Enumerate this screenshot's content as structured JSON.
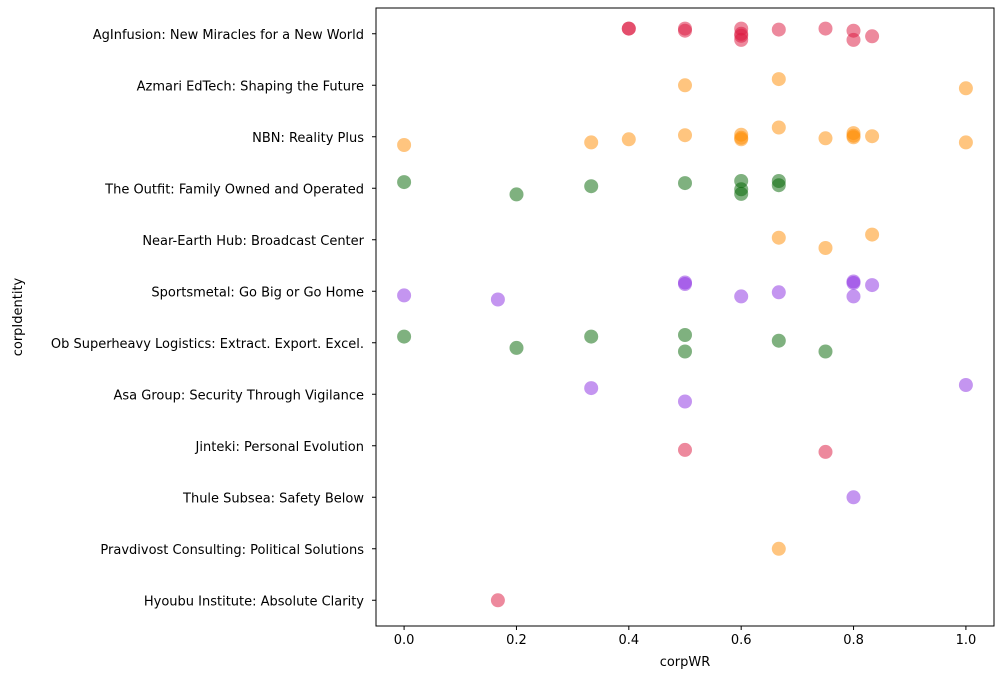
{
  "chart_data": {
    "type": "scatter",
    "title": "",
    "xlabel": "corpWR",
    "ylabel": "corpIdentity",
    "xlim": [
      -0.05,
      1.05
    ],
    "x_ticks": [
      0.0,
      0.2,
      0.4,
      0.6,
      0.8,
      1.0
    ],
    "x_tick_labels": [
      "0.0",
      "0.2",
      "0.4",
      "0.6",
      "0.8",
      "1.0"
    ],
    "grid": false,
    "categories": [
      "AgInfusion: New Miracles for a New World",
      "Azmari EdTech: Shaping the Future",
      "NBN: Reality Plus",
      "The Outfit: Family Owned and Operated",
      "Near-Earth Hub: Broadcast Center",
      "Sportsmetal: Go Big or Go Home",
      "Ob Superheavy Logistics: Extract. Export. Excel.",
      "Asa Group: Security Through Vigilance",
      "Jinteki: Personal Evolution",
      "Thule Subsea: Safety Below",
      "Pravdivost Consulting: Political Solutions",
      "Hyoubu Institute: Absolute Clarity"
    ],
    "category_colors": {
      "AgInfusion: New Miracles for a New World": "#dc143c",
      "Azmari EdTech: Shaping the Future": "#ff8c00",
      "NBN: Reality Plus": "#ff8c00",
      "The Outfit: Family Owned and Operated": "#006400",
      "Near-Earth Hub: Broadcast Center": "#ff8c00",
      "Sportsmetal: Go Big or Go Home": "#8a2be2",
      "Ob Superheavy Logistics: Extract. Export. Excel.": "#006400",
      "Asa Group: Security Through Vigilance": "#8a2be2",
      "Jinteki: Personal Evolution": "#dc143c",
      "Thule Subsea: Safety Below": "#8a2be2",
      "Pravdivost Consulting: Political Solutions": "#ff8c00",
      "Hyoubu Institute: Absolute Clarity": "#dc143c"
    },
    "points": [
      {
        "category": "AgInfusion: New Miracles for a New World",
        "x": [
          0.4,
          0.4,
          0.5,
          0.5,
          0.6,
          0.6,
          0.6,
          0.6,
          0.667,
          0.75,
          0.8,
          0.8,
          0.833
        ],
        "jitter": [
          0.1,
          0.1,
          0.1,
          0.06,
          0.1,
          0.0,
          -0.04,
          -0.12,
          0.08,
          0.1,
          0.06,
          -0.12,
          -0.05
        ]
      },
      {
        "category": "Azmari EdTech: Shaping the Future",
        "x": [
          0.5,
          0.667,
          1.0
        ],
        "jitter": [
          0.0,
          0.12,
          -0.06
        ]
      },
      {
        "category": "NBN: Reality Plus",
        "x": [
          0.0,
          0.333,
          0.4,
          0.5,
          0.6,
          0.6,
          0.6,
          0.667,
          0.75,
          0.8,
          0.8,
          0.8,
          0.833,
          1.0
        ],
        "jitter": [
          -0.16,
          -0.11,
          -0.05,
          0.03,
          0.04,
          -0.02,
          -0.05,
          0.18,
          -0.03,
          0.07,
          0.02,
          -0.01,
          0.01,
          -0.11
        ]
      },
      {
        "category": "The Outfit: Family Owned and Operated",
        "x": [
          0.0,
          0.2,
          0.333,
          0.5,
          0.6,
          0.6,
          0.6,
          0.667,
          0.667
        ],
        "jitter": [
          0.12,
          -0.12,
          0.04,
          0.1,
          0.14,
          -0.02,
          -0.11,
          0.14,
          0.06
        ]
      },
      {
        "category": "Near-Earth Hub: Broadcast Center",
        "x": [
          0.667,
          0.75,
          0.833
        ],
        "jitter": [
          0.04,
          -0.16,
          0.1
        ]
      },
      {
        "category": "Sportsmetal: Go Big or Go Home",
        "x": [
          0.0,
          0.167,
          0.5,
          0.5,
          0.6,
          0.667,
          0.8,
          0.8,
          0.8,
          0.833
        ],
        "jitter": [
          -0.08,
          -0.16,
          0.17,
          0.14,
          -0.1,
          -0.02,
          0.19,
          0.16,
          -0.1,
          0.12
        ]
      },
      {
        "category": "Ob Superheavy Logistics: Extract. Export. Excel.",
        "x": [
          0.0,
          0.2,
          0.333,
          0.5,
          0.5,
          0.667,
          0.75
        ],
        "jitter": [
          0.12,
          -0.1,
          0.12,
          0.15,
          -0.17,
          0.04,
          -0.17
        ]
      },
      {
        "category": "Asa Group: Security Through Vigilance",
        "x": [
          0.333,
          0.5,
          1.0
        ],
        "jitter": [
          0.12,
          -0.14,
          0.18
        ]
      },
      {
        "category": "Jinteki: Personal Evolution",
        "x": [
          0.5,
          0.75
        ],
        "jitter": [
          -0.08,
          -0.12
        ]
      },
      {
        "category": "Thule Subsea: Safety Below",
        "x": [
          0.8
        ],
        "jitter": [
          0.0
        ]
      },
      {
        "category": "Pravdivost Consulting: Political Solutions",
        "x": [
          0.667
        ],
        "jitter": [
          0.0
        ]
      },
      {
        "category": "Hyoubu Institute: Absolute Clarity",
        "x": [
          0.167
        ],
        "jitter": [
          0.0
        ]
      }
    ]
  }
}
